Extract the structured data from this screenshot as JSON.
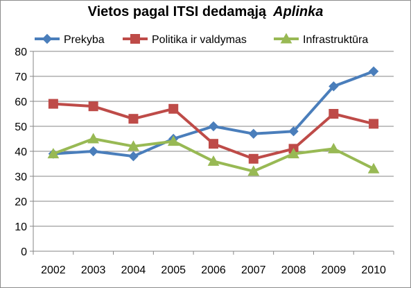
{
  "chart_data": {
    "type": "line",
    "title": "Vietos pagal ITSI dedamąją",
    "title_emphasis": "Aplinka",
    "xlabel": "",
    "ylabel": "",
    "categories": [
      "2002",
      "2003",
      "2004",
      "2005",
      "2006",
      "2007",
      "2008",
      "2009",
      "2010"
    ],
    "ylim": [
      0,
      80
    ],
    "yticks": [
      0,
      10,
      20,
      30,
      40,
      50,
      60,
      70,
      80
    ],
    "grid": true,
    "legend_position": "top",
    "series": [
      {
        "name": "Prekyba",
        "color": "#4a7ebb",
        "marker": "diamond",
        "values": [
          39,
          40,
          38,
          45,
          50,
          47,
          48,
          66,
          72
        ]
      },
      {
        "name": "Politika ir valdymas",
        "color": "#be4b48",
        "marker": "square",
        "values": [
          59,
          58,
          53,
          57,
          43,
          37,
          41,
          55,
          51
        ]
      },
      {
        "name": "Infrastruktūra",
        "color": "#98b954",
        "marker": "triangle",
        "values": [
          39,
          45,
          42,
          44,
          36,
          32,
          39,
          41,
          33
        ]
      }
    ]
  }
}
